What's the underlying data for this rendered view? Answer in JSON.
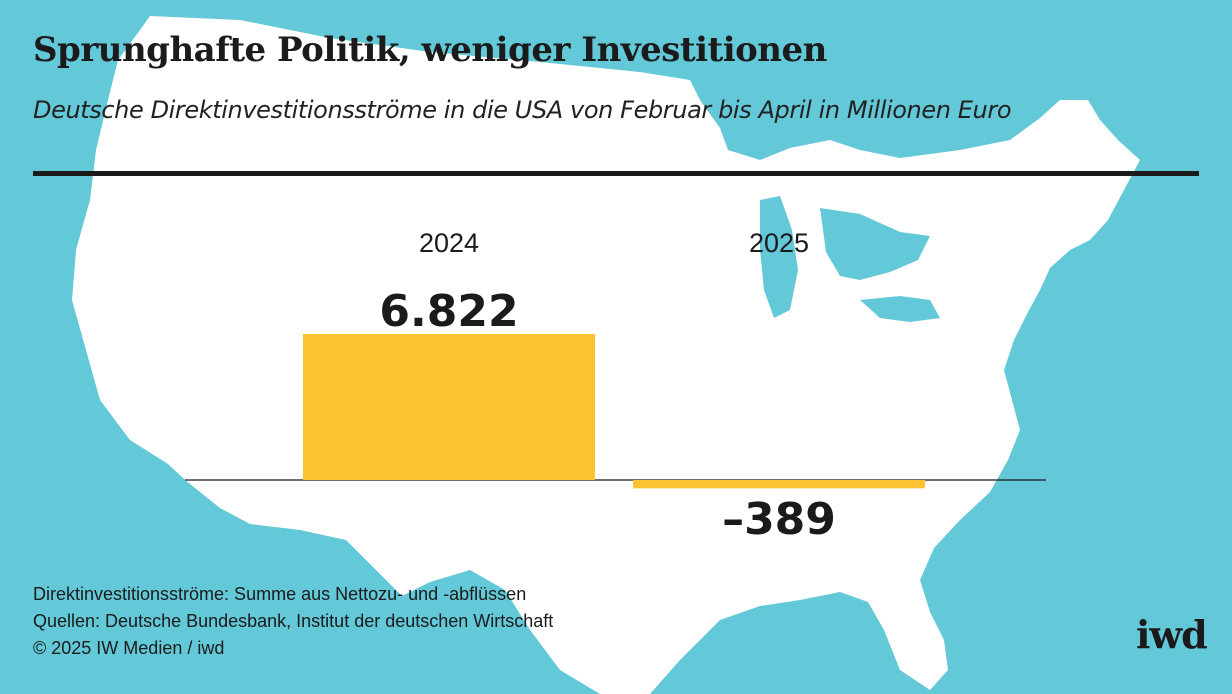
{
  "title": "Sprunghafte Politik, weniger Investitionen",
  "subtitle": "Deutsche Direktinvestitionsströme in die USA von Februar bis April in Millionen Euro",
  "footer": {
    "note": "Direktinvestitionsströme: Summe aus Nettozu- und -abflüssen",
    "sources": "Quellen: Deutsche Bundesbank, Institut der deutschen Wirtschaft",
    "copyright": "© 2025 IW Medien / iwd"
  },
  "logo": "iwd",
  "colors": {
    "background": "#63c8d8",
    "map": "#ffffff",
    "bar": "#fdc231",
    "text": "#1b1b1b"
  },
  "chart_data": {
    "type": "bar",
    "categories": [
      "2024",
      "2025"
    ],
    "values": [
      6822,
      -389
    ],
    "value_labels": [
      "6.822",
      "–389"
    ],
    "title": "",
    "xlabel": "",
    "ylabel": "",
    "grid": false
  }
}
